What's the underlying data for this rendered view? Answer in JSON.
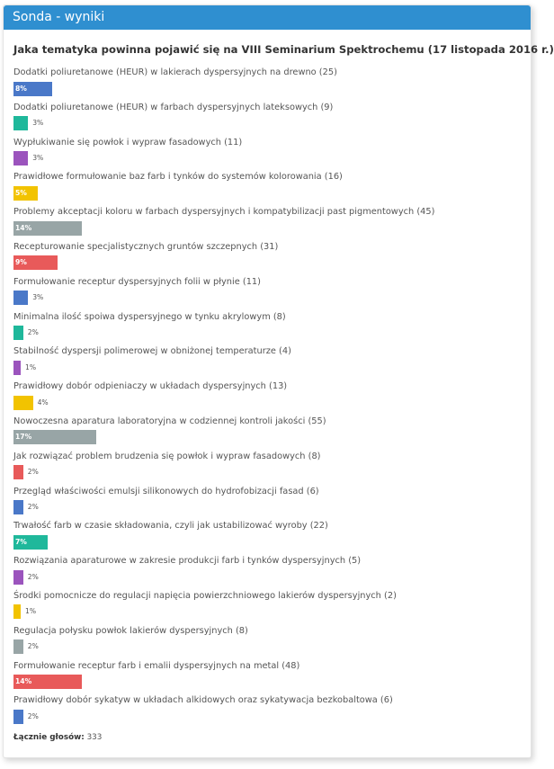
{
  "panel": {
    "title": "Sonda - wyniki",
    "question": "Jaka tematyka powinna pojawić się na VIII Seminarium Spektrochemu (17 listopada 2016 r.)"
  },
  "answers": [
    {
      "label": "Dodatki poliuretanowe (HEUR) w lakierach dyspersyjnych na drewno (25)",
      "percent": "8%",
      "value": 8,
      "color": "#4a78c8"
    },
    {
      "label": "Dodatki poliuretanowe (HEUR) w farbach dyspersyjnych lateksowych (9)",
      "percent": "3%",
      "value": 3,
      "color": "#1fb89b"
    },
    {
      "label": "Wypłukiwanie się powłok i wypraw fasadowych (11)",
      "percent": "3%",
      "value": 3,
      "color": "#9b54bd"
    },
    {
      "label": "Prawidłowe formułowanie baz farb i tynków do systemów kolorowania (16)",
      "percent": "5%",
      "value": 5,
      "color": "#f2c300"
    },
    {
      "label": "Problemy akceptacji koloru w farbach dyspersyjnych i kompatybilizacji past pigmentowych (45)",
      "percent": "14%",
      "value": 14,
      "color": "#98a5a6"
    },
    {
      "label": "Recepturowanie specjalistycznych gruntów szczepnych (31)",
      "percent": "9%",
      "value": 9,
      "color": "#e85a5a"
    },
    {
      "label": "Formułowanie receptur dyspersyjnych folii w płynie (11)",
      "percent": "3%",
      "value": 3,
      "color": "#4a78c8"
    },
    {
      "label": "Minimalna ilość spoiwa dyspersyjnego w tynku akrylowym (8)",
      "percent": "2%",
      "value": 2,
      "color": "#1fb89b"
    },
    {
      "label": "Stabilność dyspersji polimerowej w obniżonej temperaturze (4)",
      "percent": "1%",
      "value": 1,
      "color": "#9b54bd"
    },
    {
      "label": "Prawidłowy dobór odpieniaczy w układach dyspersyjnych (13)",
      "percent": "4%",
      "value": 4,
      "color": "#f2c300"
    },
    {
      "label": "Nowoczesna aparatura laboratoryjna w codziennej kontroli jakości (55)",
      "percent": "17%",
      "value": 17,
      "color": "#98a5a6"
    },
    {
      "label": "Jak rozwiązać problem brudzenia się powłok i wypraw fasadowych (8)",
      "percent": "2%",
      "value": 2,
      "color": "#e85a5a"
    },
    {
      "label": "Przegląd właściwości emulsji silikonowych do hydrofobizacji fasad (6)",
      "percent": "2%",
      "value": 2,
      "color": "#4a78c8"
    },
    {
      "label": "Trwałość farb w czasie składowania, czyli jak ustabilizować wyroby (22)",
      "percent": "7%",
      "value": 7,
      "color": "#1fb89b"
    },
    {
      "label": "Rozwiązania aparaturowe w zakresie produkcji farb i tynków dyspersyjnych (5)",
      "percent": "2%",
      "value": 2,
      "color": "#9b54bd"
    },
    {
      "label": "Środki pomocnicze do regulacji napięcia powierzchniowego lakierów dyspersyjnych (2)",
      "percent": "1%",
      "value": 1,
      "color": "#f2c300"
    },
    {
      "label": "Regulacja połysku powłok lakierów dyspersyjnych (8)",
      "percent": "2%",
      "value": 2,
      "color": "#98a5a6"
    },
    {
      "label": "Formułowanie receptur farb i emalii dyspersyjnych na metal (48)",
      "percent": "14%",
      "value": 14,
      "color": "#e85a5a"
    },
    {
      "label": "Prawidłowy dobór sykatyw w układach alkidowych oraz sykatywacja bezkobaltowa (6)",
      "percent": "2%",
      "value": 2,
      "color": "#4a78c8"
    }
  ],
  "total": {
    "label": "Łącznie głosów:",
    "value": "333"
  }
}
